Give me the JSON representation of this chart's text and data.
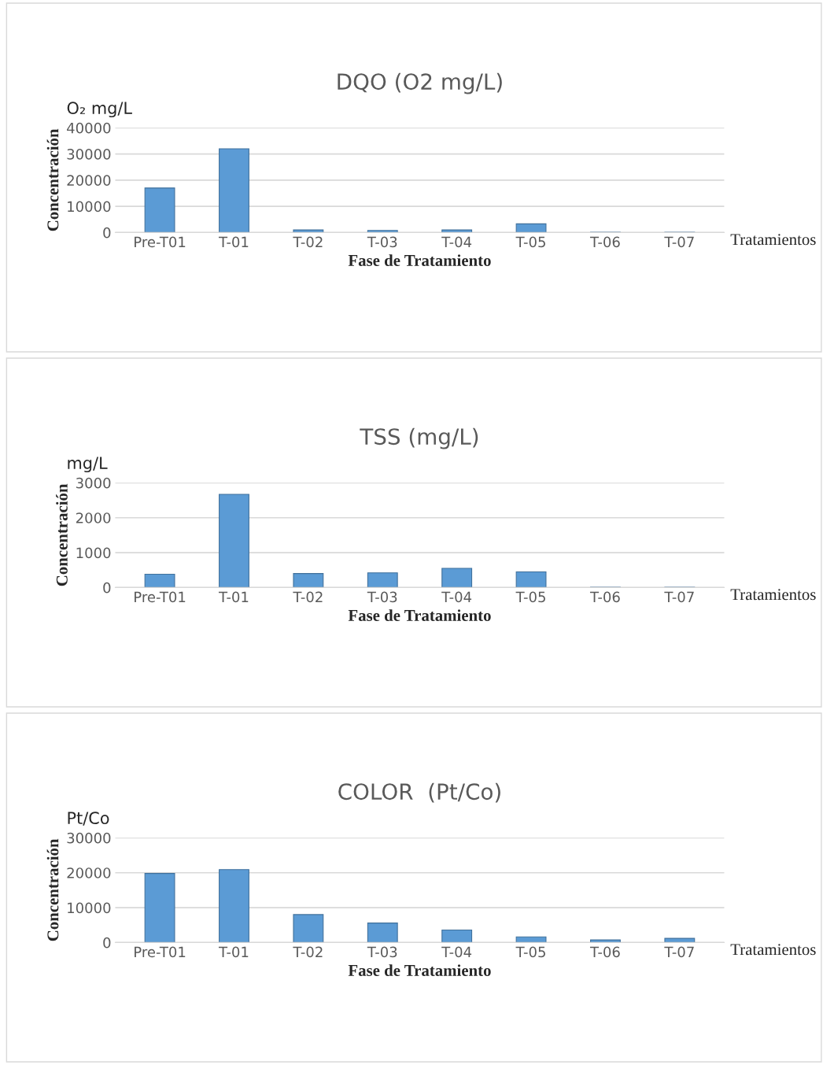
{
  "chart_data": [
    {
      "type": "bar",
      "title": "DQO (O2 mg/L)",
      "xlabel": "Fase de Tratamiento",
      "ylabel": "Concentración",
      "annotations": [
        "O₂ mg/L",
        "Tratamientos"
      ],
      "categories": [
        "Pre-T01",
        "T-01",
        "T-02",
        "T-03",
        "T-04",
        "T-05",
        "T-06",
        "T-07"
      ],
      "series": [
        {
          "color": "#5b9bd5",
          "values": [
            17000,
            32000,
            1000,
            800,
            1000,
            3300,
            100,
            100
          ]
        }
      ],
      "ylim": [
        0,
        40000
      ],
      "yticks": [
        0,
        10000,
        20000,
        30000,
        40000
      ],
      "grid": "y"
    },
    {
      "type": "bar",
      "title": "TSS (mg/L)",
      "xlabel": "Fase de Tratamiento",
      "ylabel": "Concentración",
      "annotations": [
        "mg/L",
        "Tratamientos"
      ],
      "categories": [
        "Pre-T01",
        "T-01",
        "T-02",
        "T-03",
        "T-04",
        "T-05",
        "T-06",
        "T-07"
      ],
      "series": [
        {
          "color": "#5b9bd5",
          "values": [
            380,
            2670,
            400,
            420,
            550,
            450,
            10,
            10
          ]
        }
      ],
      "ylim": [
        0,
        3000
      ],
      "yticks": [
        0,
        1000,
        2000,
        3000
      ],
      "grid": "y"
    },
    {
      "type": "bar",
      "title": "COLOR  (Pt/Co)",
      "xlabel": "Fase de Tratamiento",
      "ylabel": "Concentración",
      "annotations": [
        "Pt/Co",
        "Tratamientos"
      ],
      "categories": [
        "Pre-T01",
        "T-01",
        "T-02",
        "T-03",
        "T-04",
        "T-05",
        "T-06",
        "T-07"
      ],
      "series": [
        {
          "color": "#5b9bd5",
          "values": [
            19800,
            20900,
            8000,
            5600,
            3600,
            1600,
            750,
            1200
          ]
        }
      ],
      "ylim": [
        0,
        30000
      ],
      "yticks": [
        0,
        10000,
        20000,
        30000
      ],
      "grid": "y"
    }
  ]
}
